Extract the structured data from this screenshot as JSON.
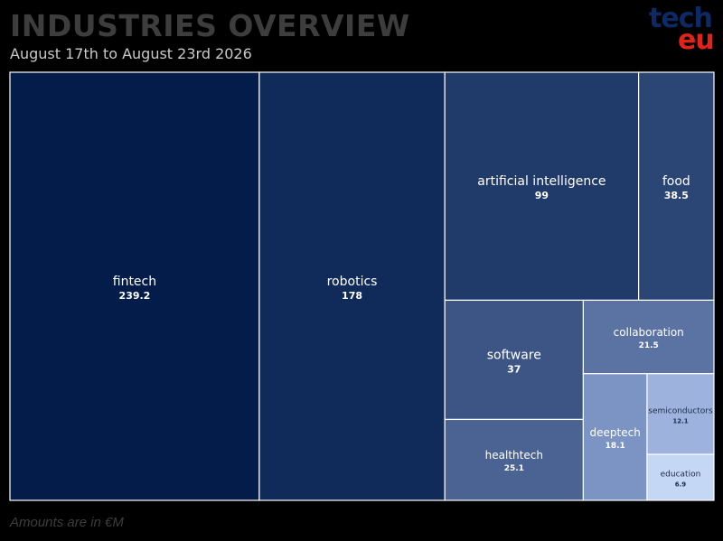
{
  "header": {
    "title": "INDUSTRIES OVERVIEW",
    "subtitle": "August 17th to August 23rd 2026"
  },
  "logo": {
    "line1": "tech",
    "line2": "eu"
  },
  "footnote": "Amounts are in €M",
  "chart_data": {
    "type": "treemap",
    "title": "INDUSTRIES OVERVIEW",
    "subtitle": "August 17th to August 23rd 2026",
    "unit": "€M",
    "items": [
      {
        "label": "fintech",
        "value": 239.2,
        "display": "239.2",
        "color": "#041c4a"
      },
      {
        "label": "robotics",
        "value": 178,
        "display": "178",
        "color": "#102a5a"
      },
      {
        "label": "artificial intelligence",
        "value": 99,
        "display": "99",
        "color": "#203a6a"
      },
      {
        "label": "food",
        "value": 38.5,
        "display": "38.5",
        "color": "#2b4574"
      },
      {
        "label": "software",
        "value": 37,
        "display": "37",
        "color": "#3d5585"
      },
      {
        "label": "healthtech",
        "value": 25.1,
        "display": "25.1",
        "color": "#4a6393"
      },
      {
        "label": "collaboration",
        "value": 21.5,
        "display": "21.5",
        "color": "#5b73a2"
      },
      {
        "label": "deeptech",
        "value": 18.1,
        "display": "18.1",
        "color": "#7b94c3"
      },
      {
        "label": "semiconductors",
        "value": 12.1,
        "display": "12.1",
        "color": "#9db3dd"
      },
      {
        "label": "education",
        "value": 6.9,
        "display": "6.9",
        "color": "#c4d7f5"
      }
    ]
  }
}
